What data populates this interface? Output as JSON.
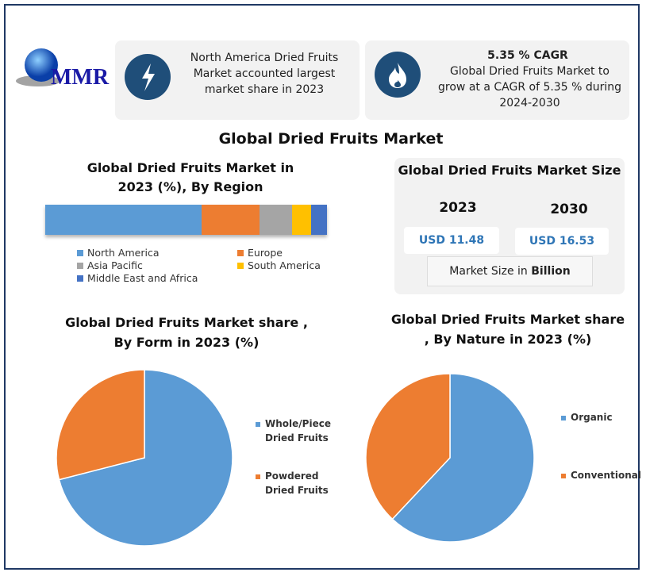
{
  "logo": {
    "text": "MMR"
  },
  "highlights": [
    {
      "icon": "lightning-icon",
      "text": "North America Dried Fruits Market accounted largest market share in 2023"
    },
    {
      "icon": "flame-icon",
      "title": "5.35 % CAGR",
      "text": "Global Dried Fruits Market to grow at a CAGR of 5.35 % during 2024-2030"
    }
  ],
  "main_title": "Global Dried Fruits Market",
  "market_size": {
    "title": "Global Dried Fruits Market  Size",
    "years": [
      "2023",
      "2030"
    ],
    "values": [
      "USD 11.48",
      "USD 16.53"
    ],
    "unit_prefix": "Market Size in ",
    "unit_bold": "Billion"
  },
  "colors": {
    "blue": "#5b9bd5",
    "orange": "#ed7d31",
    "gray": "#a5a5a5",
    "yellow": "#ffc000",
    "darkblue": "#4472c4"
  },
  "chart_data": [
    {
      "type": "bar",
      "stacked": true,
      "orientation": "horizontal",
      "title": "Global Dried Fruits Market  in 2023 (%), By Region",
      "legend": "bottom",
      "series": [
        {
          "name": "North America",
          "values": [
            55.5
          ],
          "color": "#5b9bd5"
        },
        {
          "name": "Europe",
          "values": [
            20.5
          ],
          "color": "#ed7d31"
        },
        {
          "name": "Asia Pacific",
          "values": [
            11.5
          ],
          "color": "#a5a5a5"
        },
        {
          "name": "South America",
          "values": [
            7
          ],
          "color": "#ffc000"
        },
        {
          "name": "Middle East and Africa",
          "values": [
            5.5
          ],
          "color": "#4472c4"
        }
      ]
    },
    {
      "type": "pie",
      "title": "Global  Dried Fruits Market share , By Form in 2023  (%)",
      "legend": "right",
      "slices": [
        {
          "label": "Whole/Piece Dried Fruits",
          "value": 71,
          "color": "#5b9bd5"
        },
        {
          "label": "Powdered Dried Fruits",
          "value": 29,
          "color": "#ed7d31"
        }
      ]
    },
    {
      "type": "pie",
      "title": "Global  Dried Fruits Market share , By Nature in 2023  (%)",
      "legend": "right",
      "slices": [
        {
          "label": "Organic",
          "value": 62,
          "color": "#5b9bd5"
        },
        {
          "label": "Conventional",
          "value": 38,
          "color": "#ed7d31"
        }
      ]
    }
  ]
}
